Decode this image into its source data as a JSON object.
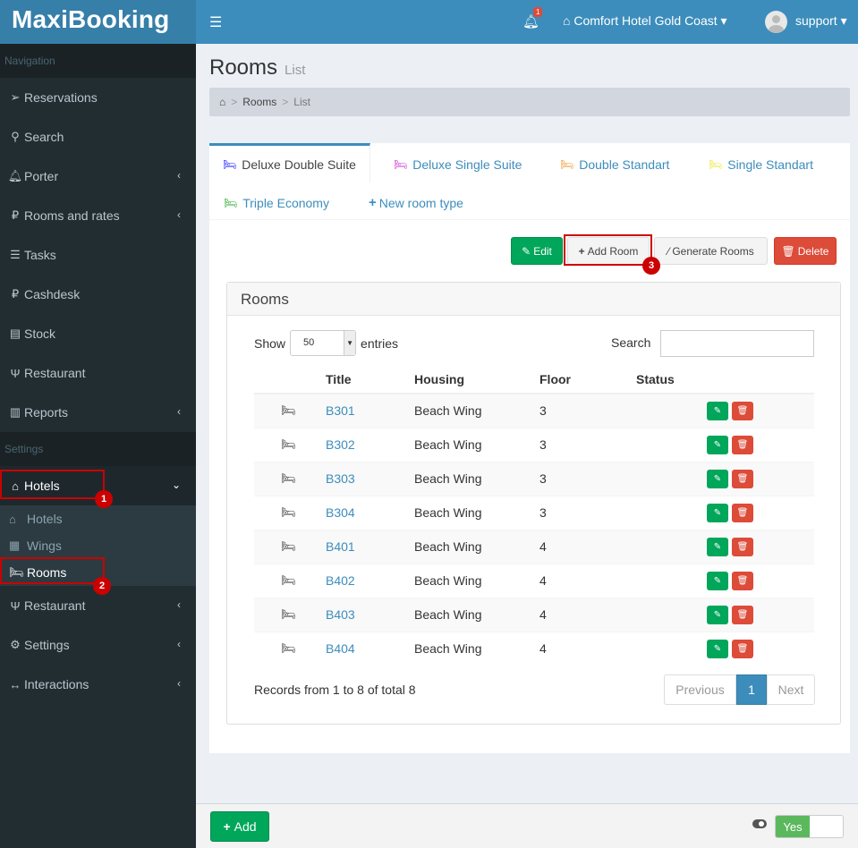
{
  "app": {
    "logo": "MaxiBooking"
  },
  "navbar": {
    "notifications_count": "1",
    "hotel": "Comfort Hotel Gold Coast",
    "user": "support"
  },
  "sidebar": {
    "nav_header": "Navigation",
    "settings_header": "Settings",
    "nav_items": [
      {
        "label": "Reservations",
        "icon": "paper-plane-icon"
      },
      {
        "label": "Search",
        "icon": "search-icon"
      },
      {
        "label": "Porter",
        "icon": "bell-icon"
      },
      {
        "label": "Rooms and rates",
        "icon": "ruble-icon"
      },
      {
        "label": "Tasks",
        "icon": "tasks-icon"
      },
      {
        "label": "Cashdesk",
        "icon": "ruble-icon"
      },
      {
        "label": "Stock",
        "icon": "book-icon"
      },
      {
        "label": "Restaurant",
        "icon": "cutlery-icon"
      },
      {
        "label": "Reports",
        "icon": "bar-chart-icon"
      }
    ],
    "settings_items": [
      {
        "label": "Hotels",
        "icon": "home-icon"
      },
      {
        "label": "Restaurant",
        "icon": "cutlery-icon"
      },
      {
        "label": "Settings",
        "icon": "gears-icon"
      },
      {
        "label": "Interactions",
        "icon": "arrows-h-icon"
      }
    ],
    "hotels_sub": [
      {
        "label": "Hotels",
        "icon": "home-icon"
      },
      {
        "label": "Wings",
        "icon": "building-icon"
      },
      {
        "label": "Rooms",
        "icon": "bed-icon"
      }
    ]
  },
  "page": {
    "title": "Rooms",
    "subtitle": "List"
  },
  "breadcrumb": {
    "item": "Rooms",
    "current": "List"
  },
  "tabs": [
    {
      "label": "Deluxe Double Suite",
      "color": "#1a1aff"
    },
    {
      "label": "Deluxe Single Suite",
      "color": "#cc33cc"
    },
    {
      "label": "Double Standart",
      "color": "#f0962a"
    },
    {
      "label": "Single Standart",
      "color": "#e8e82a"
    },
    {
      "label": "Triple Economy",
      "color": "#2aaa2a"
    },
    {
      "label": "New room type",
      "color": "#3c8dbc"
    }
  ],
  "actions": {
    "edit": "Edit",
    "add_room": "Add Room",
    "generate": "Generate Rooms",
    "delete": "Delete"
  },
  "rooms_box": {
    "title": "Rooms",
    "show_label": "Show",
    "entries_value": "50",
    "entries_label": "entries",
    "search_label": "Search",
    "columns": [
      "Title",
      "Housing",
      "Floor",
      "Status"
    ],
    "rows": [
      {
        "title": "B301",
        "housing": "Beach Wing",
        "floor": "3"
      },
      {
        "title": "B302",
        "housing": "Beach Wing",
        "floor": "3"
      },
      {
        "title": "B303",
        "housing": "Beach Wing",
        "floor": "3"
      },
      {
        "title": "B304",
        "housing": "Beach Wing",
        "floor": "3"
      },
      {
        "title": "B401",
        "housing": "Beach Wing",
        "floor": "4"
      },
      {
        "title": "B402",
        "housing": "Beach Wing",
        "floor": "4"
      },
      {
        "title": "B403",
        "housing": "Beach Wing",
        "floor": "4"
      },
      {
        "title": "B404",
        "housing": "Beach Wing",
        "floor": "4"
      }
    ],
    "records_text": "Records from 1 to 8 of total 8",
    "pager": {
      "prev": "Previous",
      "page": "1",
      "next": "Next"
    }
  },
  "markers": {
    "m1": "1",
    "m2": "2",
    "m3": "3"
  },
  "footer": {
    "add": "Add",
    "switch_on": "Yes"
  }
}
